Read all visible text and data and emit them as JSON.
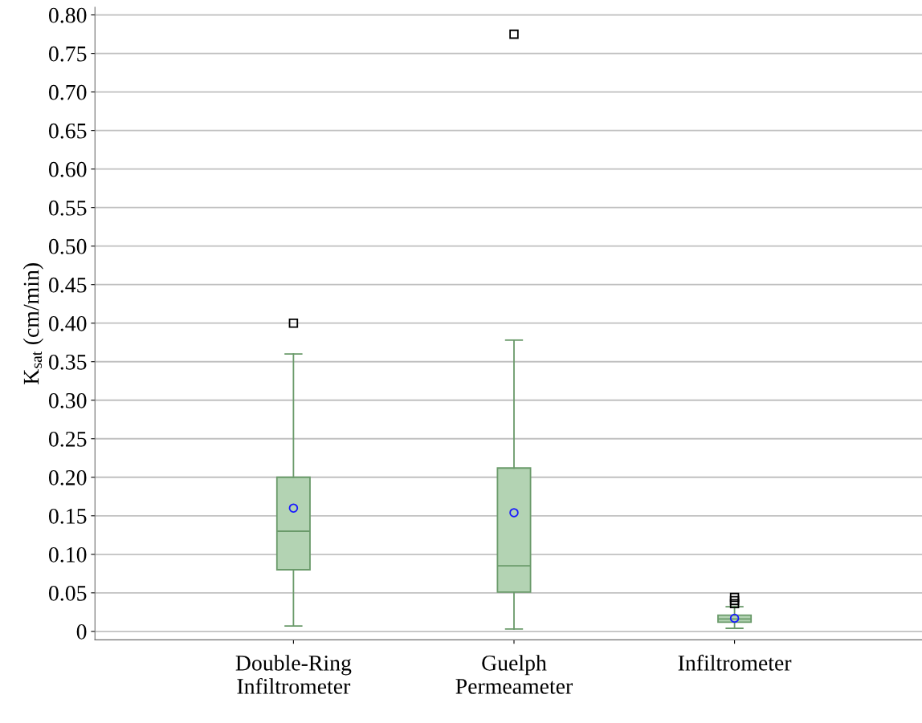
{
  "chart_data": {
    "type": "box",
    "ylabel": "K$_{sat}$ (cm/min)",
    "categories": [
      "Double-Ring\nInfiltrometer",
      "Guelph\nPermeameter",
      "Infiltrometer"
    ],
    "boxes": [
      {
        "low": 0.007,
        "q1": 0.08,
        "median": 0.13,
        "q3": 0.2,
        "high": 0.36,
        "mean": 0.16,
        "outliers": [
          0.4
        ]
      },
      {
        "low": 0.003,
        "q1": 0.051,
        "median": 0.085,
        "q3": 0.212,
        "high": 0.378,
        "mean": 0.154,
        "outliers": [
          0.775
        ]
      },
      {
        "low": 0.004,
        "q1": 0.012,
        "median": 0.016,
        "q3": 0.021,
        "high": 0.032,
        "mean": 0.017,
        "outliers": [
          0.036,
          0.04,
          0.044
        ]
      }
    ],
    "color": "#b3d3b3",
    "ylim": [
      -0.011,
      0.81
    ],
    "yticks": [
      0,
      {
        "value": 0.05,
        "label": "0.05"
      },
      {
        "value": 0.1,
        "label": "0.10"
      },
      {
        "value": 0.15,
        "label": "0.15"
      },
      {
        "value": 0.2,
        "label": "0.20"
      },
      {
        "value": 0.25,
        "label": "0.25"
      },
      {
        "value": 0.3,
        "label": "0.30"
      },
      {
        "value": 0.35,
        "label": "0.35"
      },
      {
        "value": 0.4,
        "label": "0.40"
      },
      {
        "value": 0.45,
        "label": "0.45"
      },
      {
        "value": 0.5,
        "label": "0.50"
      },
      {
        "value": 0.55,
        "label": "0.55"
      },
      {
        "value": 0.6,
        "label": "0.60"
      },
      {
        "value": 0.65,
        "label": "0.65"
      },
      {
        "value": 0.7,
        "label": "0.70"
      },
      {
        "value": 0.75,
        "label": "0.75"
      },
      {
        "value": 0.8,
        "label": "0.80"
      }
    ],
    "grid": "y"
  }
}
